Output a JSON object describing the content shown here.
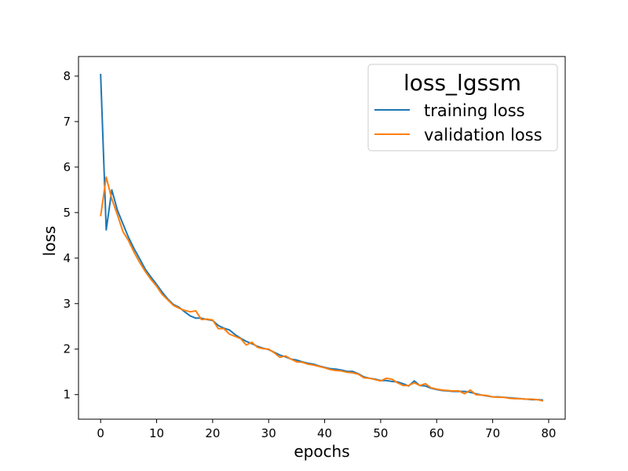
{
  "chart_data": {
    "type": "line",
    "title": "",
    "xlabel": "epochs",
    "ylabel": "loss",
    "xlim": [
      -3.95,
      82.95
    ],
    "ylim": [
      0.46,
      8.43
    ],
    "xticks": [
      0,
      10,
      20,
      30,
      40,
      50,
      60,
      70,
      80
    ],
    "yticks": [
      1,
      2,
      3,
      4,
      5,
      6,
      7,
      8
    ],
    "grid": false,
    "legend": {
      "title": "loss_lgssm",
      "placement": "top-right",
      "entries": [
        "training loss",
        "validation loss"
      ]
    },
    "x": [
      0,
      1,
      2,
      3,
      4,
      5,
      6,
      7,
      8,
      9,
      10,
      11,
      12,
      13,
      14,
      15,
      16,
      17,
      18,
      19,
      20,
      21,
      22,
      23,
      24,
      25,
      26,
      27,
      28,
      29,
      30,
      31,
      32,
      33,
      34,
      35,
      36,
      37,
      38,
      39,
      40,
      41,
      42,
      43,
      44,
      45,
      46,
      47,
      48,
      49,
      50,
      51,
      52,
      53,
      54,
      55,
      56,
      57,
      58,
      59,
      60,
      61,
      62,
      63,
      64,
      65,
      66,
      67,
      68,
      69,
      70,
      71,
      72,
      73,
      74,
      75,
      76,
      77,
      78,
      79
    ],
    "series": [
      {
        "name": "training loss",
        "color": "#1f77b4",
        "values": [
          8.05,
          4.62,
          5.5,
          5.05,
          4.75,
          4.45,
          4.2,
          3.98,
          3.75,
          3.58,
          3.42,
          3.25,
          3.1,
          2.98,
          2.92,
          2.82,
          2.73,
          2.68,
          2.68,
          2.65,
          2.63,
          2.52,
          2.46,
          2.42,
          2.32,
          2.24,
          2.17,
          2.12,
          2.06,
          2.02,
          1.99,
          1.93,
          1.87,
          1.83,
          1.78,
          1.76,
          1.72,
          1.69,
          1.67,
          1.63,
          1.6,
          1.57,
          1.56,
          1.54,
          1.51,
          1.51,
          1.46,
          1.39,
          1.36,
          1.34,
          1.31,
          1.31,
          1.29,
          1.28,
          1.24,
          1.19,
          1.3,
          1.2,
          1.19,
          1.14,
          1.11,
          1.09,
          1.08,
          1.07,
          1.07,
          1.07,
          1.05,
          1.02,
          0.99,
          0.97,
          0.95,
          0.95,
          0.94,
          0.93,
          0.92,
          0.91,
          0.9,
          0.89,
          0.89,
          0.88
        ]
      },
      {
        "name": "validation loss",
        "color": "#ff7f0e",
        "values": [
          4.92,
          5.78,
          5.3,
          4.95,
          4.58,
          4.38,
          4.12,
          3.9,
          3.7,
          3.53,
          3.38,
          3.2,
          3.08,
          2.96,
          2.9,
          2.85,
          2.82,
          2.84,
          2.65,
          2.66,
          2.64,
          2.45,
          2.45,
          2.33,
          2.28,
          2.23,
          2.09,
          2.15,
          2.04,
          2.01,
          2.0,
          1.92,
          1.82,
          1.85,
          1.78,
          1.72,
          1.71,
          1.67,
          1.65,
          1.62,
          1.59,
          1.55,
          1.53,
          1.52,
          1.49,
          1.48,
          1.45,
          1.37,
          1.36,
          1.33,
          1.3,
          1.36,
          1.34,
          1.26,
          1.2,
          1.2,
          1.26,
          1.2,
          1.24,
          1.15,
          1.12,
          1.1,
          1.09,
          1.08,
          1.08,
          1.02,
          1.1,
          1.0,
          0.99,
          0.98,
          0.95,
          0.94,
          0.94,
          0.92,
          0.91,
          0.91,
          0.9,
          0.9,
          0.89,
          0.86
        ]
      }
    ]
  }
}
